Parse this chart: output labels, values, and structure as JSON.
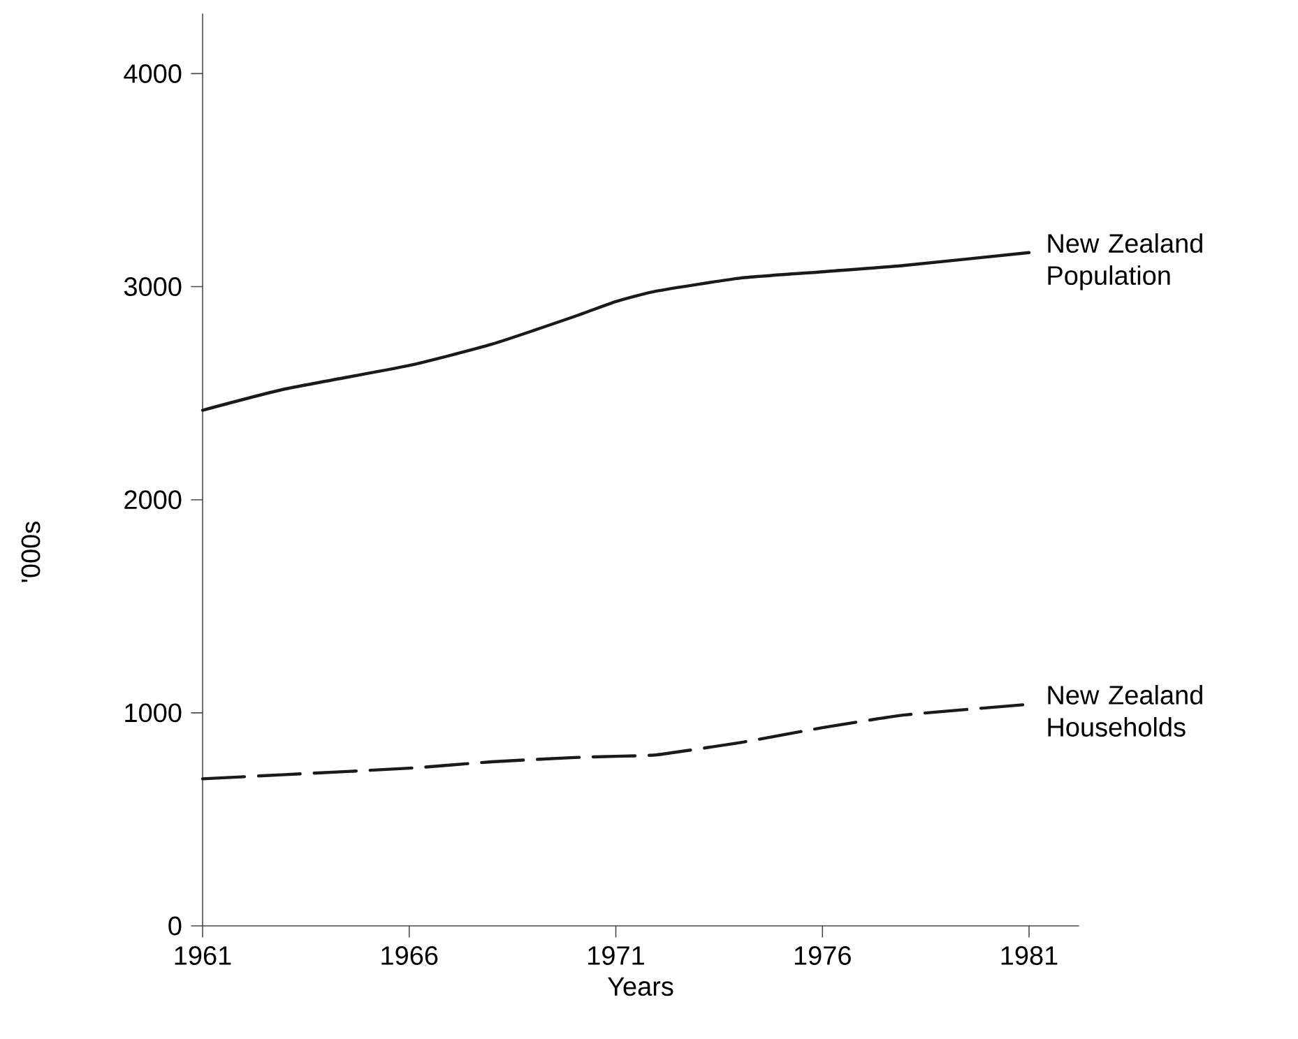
{
  "chart_data": {
    "type": "line",
    "xlabel": "Years",
    "ylabel": "'000s",
    "x": [
      1961,
      1963,
      1966,
      1968,
      1970,
      1971,
      1972,
      1974,
      1976,
      1978,
      1981
    ],
    "series": [
      {
        "name": "New Zealand Population",
        "color": "#1a1a1a",
        "line_style": "solid",
        "values": [
          2420,
          2520,
          2630,
          2730,
          2860,
          2930,
          2980,
          3040,
          3070,
          3100,
          3160
        ]
      },
      {
        "name": "New Zealand Households",
        "color": "#1a1a1a",
        "line_style": "dashed",
        "values": [
          690,
          710,
          740,
          770,
          790,
          796,
          803,
          860,
          930,
          990,
          1040
        ]
      }
    ],
    "xlim": [
      1961,
      1982.2
    ],
    "ylim": [
      0,
      4280
    ],
    "xticks": [
      1961,
      1966,
      1971,
      1976,
      1981
    ],
    "yticks": [
      0,
      1000,
      2000,
      3000,
      4000
    ],
    "grid": false
  }
}
